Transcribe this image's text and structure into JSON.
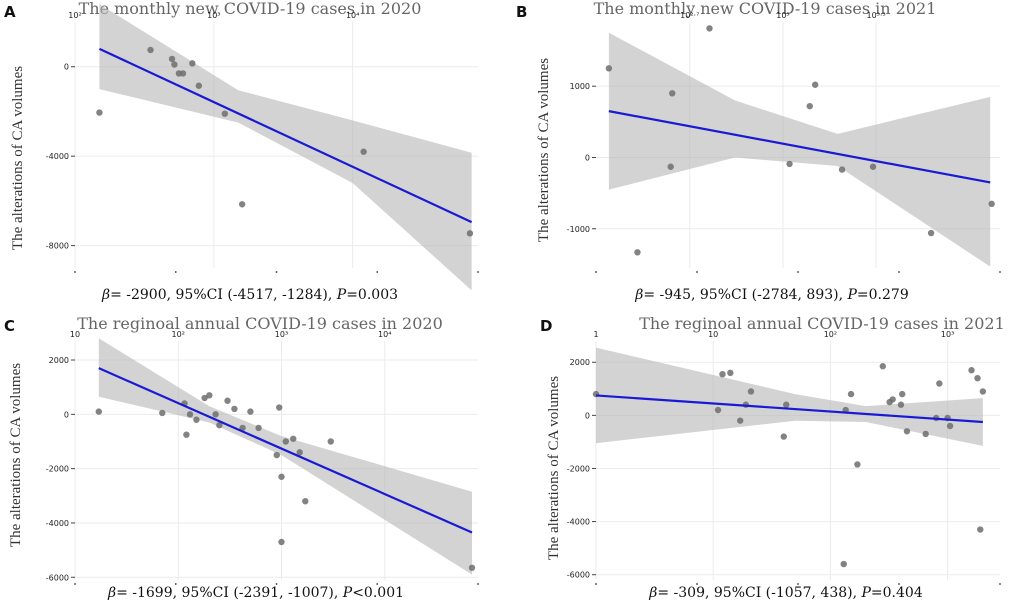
{
  "chart_data": [
    {
      "type": "scatter",
      "panel_label": "A",
      "title": "The monthly new COVID-19 cases in 2020",
      "ylabel": "The alterations of CA volumes",
      "xscale": "log10",
      "xlim": [
        100,
        80000
      ],
      "ylim": [
        -9000,
        2000
      ],
      "xticks": [
        {
          "value": 100,
          "label": "10²"
        },
        {
          "value": 1000,
          "label": "10³"
        },
        {
          "value": 10000,
          "label": "10⁴"
        }
      ],
      "yticks": [
        {
          "value": 0,
          "label": "0"
        },
        {
          "value": -4000,
          "label": "-4000"
        },
        {
          "value": -8000,
          "label": "-8000"
        }
      ],
      "points": [
        [
          150,
          -2050
        ],
        [
          350,
          750
        ],
        [
          500,
          350
        ],
        [
          520,
          100
        ],
        [
          560,
          -300
        ],
        [
          600,
          -300
        ],
        [
          700,
          150
        ],
        [
          780,
          -850
        ],
        [
          1200,
          -2100
        ],
        [
          1600,
          -6150
        ],
        [
          12000,
          -3800
        ],
        [
          70000,
          -7450
        ]
      ],
      "fit": {
        "x_start": 150,
        "x_end": 72000,
        "y_start": 800,
        "y_end": -6950
      },
      "ci_band": {
        "x": [
          150,
          1500,
          10000,
          72000
        ],
        "lower": [
          -1000,
          -2500,
          -5200,
          -10000
        ],
        "upper": [
          2800,
          -1050,
          -2400,
          -3850
        ]
      },
      "stat": {
        "beta": "β",
        "text": "= -2900, 95%CI (-4517, -1284), ",
        "p": "P",
        "p_text": "=0.003"
      }
    },
    {
      "type": "scatter",
      "panel_label": "B",
      "title": "The monthly new COVID-19 cases in 2021",
      "ylabel": "The alterations of CA volumes",
      "xscale": "log10",
      "xlim": [
        250,
        5000
      ],
      "ylim": [
        -1550,
        1900
      ],
      "xticks": [
        {
          "value": 501,
          "label": "10²·⁷"
        },
        {
          "value": 1000,
          "label": "10³"
        },
        {
          "value": 1995,
          "label": "10³·³"
        }
      ],
      "yticks": [
        {
          "value": 1000,
          "label": "1000"
        },
        {
          "value": 0,
          "label": "0"
        },
        {
          "value": -1000,
          "label": "-1000"
        }
      ],
      "points": [
        [
          275,
          1250
        ],
        [
          340,
          -1330
        ],
        [
          440,
          900
        ],
        [
          435,
          -130
        ],
        [
          580,
          1810
        ],
        [
          1050,
          -90
        ],
        [
          1220,
          720
        ],
        [
          1270,
          1020
        ],
        [
          1550,
          -170
        ],
        [
          1950,
          -130
        ],
        [
          3000,
          -1060
        ],
        [
          4700,
          -650
        ]
      ],
      "fit": {
        "x_start": 275,
        "x_end": 4650,
        "y_start": 650,
        "y_end": -350
      },
      "ci_band": {
        "x": [
          275,
          700,
          1500,
          4650
        ],
        "lower": [
          -450,
          0,
          -120,
          -1530
        ],
        "upper": [
          1750,
          800,
          330,
          850
        ]
      },
      "stat": {
        "beta": "β",
        "text": "= -945, 95%CI (-2784, 893), ",
        "p": "P",
        "p_text": "=0.279"
      }
    },
    {
      "type": "scatter",
      "panel_label": "C",
      "title": "The reginoal annual COVID-19 cases in 2020",
      "ylabel": "The alterations of CA volumes",
      "xscale": "log10",
      "xlim": [
        10,
        80000
      ],
      "ylim": [
        -6100,
        2700
      ],
      "xticks": [
        {
          "value": 10,
          "label": "10"
        },
        {
          "value": 100,
          "label": "10²"
        },
        {
          "value": 1000,
          "label": "10³"
        },
        {
          "value": 10000,
          "label": "10⁴"
        }
      ],
      "yticks": [
        {
          "value": 2000,
          "label": "2000"
        },
        {
          "value": 0,
          "label": "0"
        },
        {
          "value": -2000,
          "label": "-2000"
        },
        {
          "value": -4000,
          "label": "-4000"
        },
        {
          "value": -6000,
          "label": "-6000"
        }
      ],
      "points": [
        [
          17,
          100
        ],
        [
          70,
          50
        ],
        [
          115,
          400
        ],
        [
          120,
          -750
        ],
        [
          130,
          0
        ],
        [
          150,
          -200
        ],
        [
          180,
          600
        ],
        [
          200,
          700
        ],
        [
          230,
          0
        ],
        [
          250,
          -400
        ],
        [
          300,
          500
        ],
        [
          350,
          200
        ],
        [
          420,
          -500
        ],
        [
          500,
          100
        ],
        [
          600,
          -500
        ],
        [
          900,
          -1500
        ],
        [
          950,
          250
        ],
        [
          1000,
          -4700
        ],
        [
          1000,
          -2300
        ],
        [
          1100,
          -1000
        ],
        [
          1300,
          -900
        ],
        [
          1500,
          -1400
        ],
        [
          1700,
          -3200
        ],
        [
          3000,
          -1000
        ],
        [
          70000,
          -5650
        ]
      ],
      "fit": {
        "x_start": 17,
        "x_end": 70000,
        "y_start": 1700,
        "y_end": -4350
      },
      "ci_band": {
        "x": [
          17,
          200,
          1000,
          70000
        ],
        "lower": [
          650,
          -300,
          -1500,
          -5900
        ],
        "upper": [
          2800,
          300,
          -800,
          -2850
        ]
      },
      "stat": {
        "beta": "β",
        "text": "= -1699, 95%CI (-2391, -1007), ",
        "p": "P",
        "p_text": "<0.001"
      }
    },
    {
      "type": "scatter",
      "panel_label": "D",
      "title": "The reginoal annual COVID-19 cases in 2021",
      "ylabel": "The alterations of CA volumes",
      "xscale": "log10",
      "xlim": [
        1,
        2800
      ],
      "ylim": [
        -6200,
        2800
      ],
      "xticks": [
        {
          "value": 1,
          "label": "1"
        },
        {
          "value": 10,
          "label": "10"
        },
        {
          "value": 100,
          "label": "10²"
        },
        {
          "value": 1000,
          "label": "10³"
        }
      ],
      "yticks": [
        {
          "value": 2000,
          "label": "2000"
        },
        {
          "value": 0,
          "label": "0"
        },
        {
          "value": -2000,
          "label": "-2000"
        },
        {
          "value": -4000,
          "label": "-4000"
        },
        {
          "value": -6000,
          "label": "-6000"
        }
      ],
      "points": [
        [
          1,
          800
        ],
        [
          11,
          200
        ],
        [
          12,
          1550
        ],
        [
          14,
          1600
        ],
        [
          17,
          -200
        ],
        [
          19,
          400
        ],
        [
          21,
          900
        ],
        [
          40,
          -800
        ],
        [
          42,
          400
        ],
        [
          130,
          -5600
        ],
        [
          135,
          200
        ],
        [
          150,
          800
        ],
        [
          170,
          -1850
        ],
        [
          280,
          1850
        ],
        [
          320,
          500
        ],
        [
          340,
          600
        ],
        [
          400,
          400
        ],
        [
          410,
          800
        ],
        [
          450,
          -600
        ],
        [
          650,
          -700
        ],
        [
          800,
          -100
        ],
        [
          850,
          1200
        ],
        [
          1000,
          -100
        ],
        [
          1050,
          -400
        ],
        [
          1600,
          1700
        ],
        [
          1800,
          1400
        ],
        [
          1900,
          -4300
        ],
        [
          2000,
          900
        ]
      ],
      "fit": {
        "x_start": 1,
        "x_end": 2000,
        "y_start": 750,
        "y_end": -250
      },
      "ci_band": {
        "x": [
          1,
          50,
          200,
          2000
        ],
        "lower": [
          -1050,
          -200,
          -250,
          -1150
        ],
        "upper": [
          2550,
          800,
          350,
          650
        ]
      },
      "stat": {
        "beta": "β",
        "text": "= -309, 95%CI (-1057, 438), ",
        "p": "P",
        "p_text": "=0.404"
      }
    }
  ]
}
